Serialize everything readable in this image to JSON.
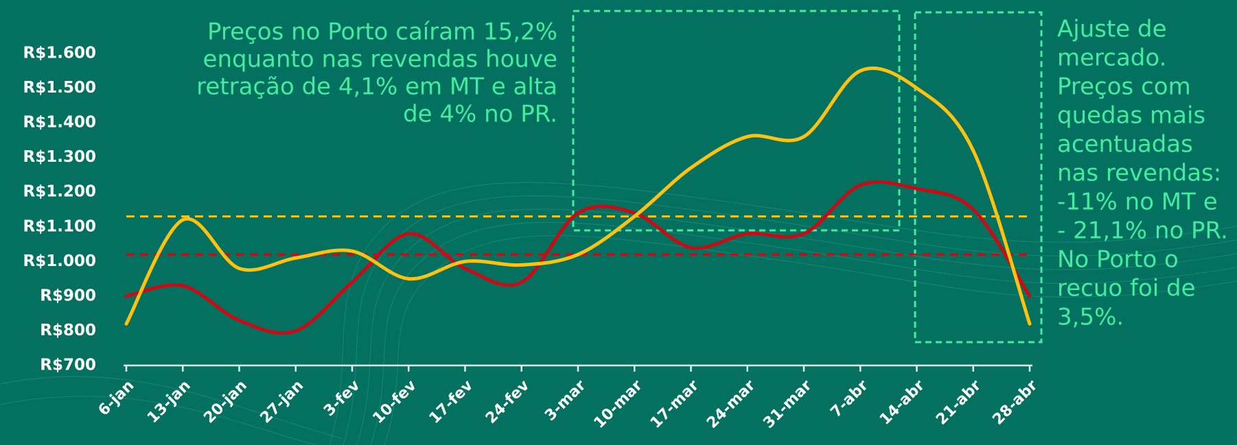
{
  "chart_data": {
    "type": "line",
    "categories": [
      "6-jan",
      "13-jan",
      "20-jan",
      "27-jan",
      "3-fev",
      "10-fev",
      "17-fev",
      "24-fev",
      "3-mar",
      "10-mar",
      "17-mar",
      "24-mar",
      "31-mar",
      "7-abr",
      "14-abr",
      "21-abr",
      "28-abr"
    ],
    "series": [
      {
        "color": "#ffc20e",
        "values": [
          820,
          1120,
          980,
          1010,
          1030,
          950,
          1000,
          990,
          1020,
          1130,
          1270,
          1360,
          1360,
          1550,
          1500,
          1320,
          820
        ]
      },
      {
        "color": "#cc0a14",
        "values": [
          900,
          930,
          830,
          800,
          940,
          1080,
          980,
          940,
          1140,
          1140,
          1040,
          1080,
          1080,
          1220,
          1210,
          1150,
          900
        ]
      }
    ],
    "reference_lines": [
      {
        "value": 1130,
        "color": "#ffc20e"
      },
      {
        "value": 1020,
        "color": "#cc0a14"
      }
    ],
    "ylim": [
      700,
      1600
    ],
    "yticks": [
      {
        "value": 700,
        "label": "R$700"
      },
      {
        "value": 800,
        "label": "R$800"
      },
      {
        "value": 900,
        "label": "R$900"
      },
      {
        "value": 1000,
        "label": "R$1.000"
      },
      {
        "value": 1100,
        "label": "R$1.100"
      },
      {
        "value": 1200,
        "label": "R$1.200"
      },
      {
        "value": 1300,
        "label": "R$1.300"
      },
      {
        "value": 1400,
        "label": "R$1.400"
      },
      {
        "value": 1500,
        "label": "R$1.500"
      },
      {
        "value": 1600,
        "label": "R$1.600"
      }
    ],
    "annotations": [
      {
        "lines": [
          "Preços no Porto caíram 15,2%",
          "enquanto nas revendas houve",
          "retração de 4,1% em MT e alta",
          "de 4% no PR."
        ]
      },
      {
        "lines": [
          "Ajuste de",
          "mercado.",
          "Preços com",
          "quedas mais",
          "acentuadas",
          "nas revendas:",
          "-11% no MT e",
          "- 21,1% no PR.",
          "No Porto o",
          "recuo foi de",
          "3,5%."
        ]
      }
    ]
  }
}
